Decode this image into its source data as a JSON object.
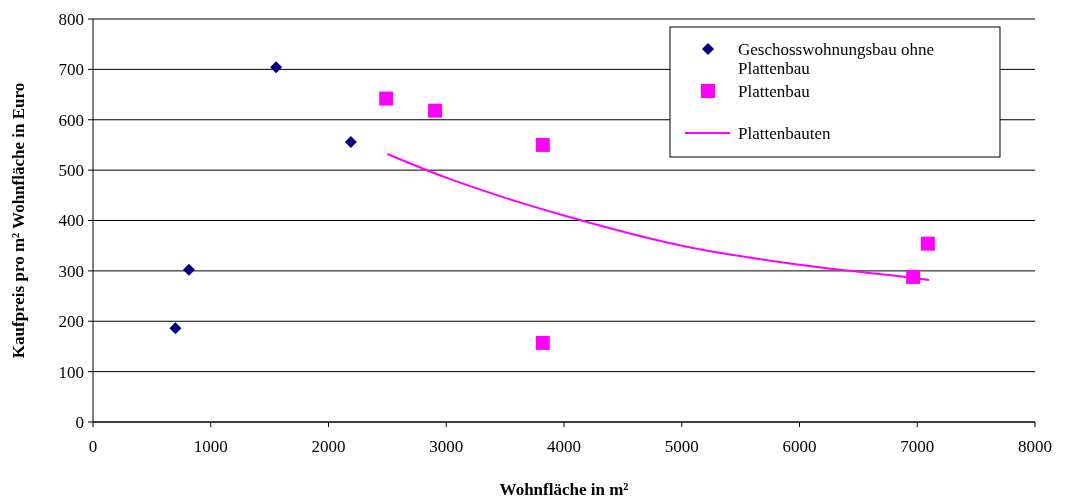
{
  "chart_data": {
    "type": "scatter",
    "xlabel": "Wohnfläche in m²",
    "ylabel": "Kaufpreis pro m² Wohnfläche in Euro",
    "xlim": [
      0,
      8000
    ],
    "xticks": [
      0,
      1000,
      2000,
      3000,
      4000,
      5000,
      6000,
      7000,
      8000
    ],
    "ylim": [
      0,
      800
    ],
    "yticks": [
      0,
      100,
      200,
      300,
      400,
      500,
      600,
      700,
      800
    ],
    "grid": "y",
    "legend": "top right",
    "series": [
      {
        "name": "Geschosswohnungsbau ohne Plattenbau",
        "color": "#000080",
        "marker": "diamond",
        "x": [
          700,
          815,
          1555,
          2190
        ],
        "values": [
          186,
          302,
          704,
          556
        ]
      },
      {
        "name": "Plattenbau",
        "color": "#ff00ff",
        "marker": "square",
        "x": [
          2490,
          2905,
          3820,
          3820,
          6965,
          7090
        ],
        "values": [
          642,
          618,
          550,
          157,
          288,
          354
        ]
      },
      {
        "name": "Plattenbauten",
        "type": "line",
        "color": "#ff00ff",
        "marker": "none",
        "x": [
          2500,
          3000,
          3500,
          4000,
          5000,
          6000,
          7000,
          7100
        ],
        "values": [
          532,
          485,
          445,
          410,
          350,
          312,
          285,
          282
        ]
      }
    ]
  }
}
